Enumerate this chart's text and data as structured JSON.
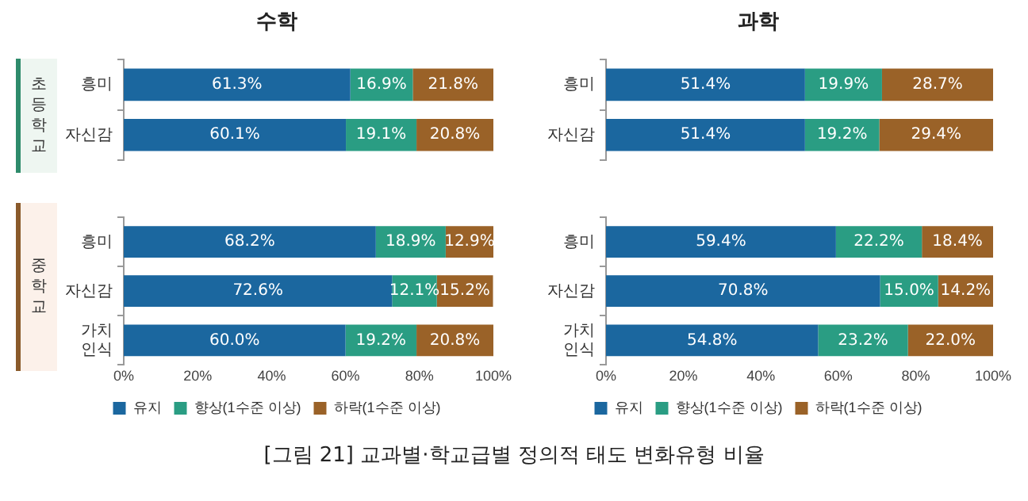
{
  "chart_data": [
    {
      "type": "bar",
      "orientation": "horizontal",
      "stacked": true,
      "title": "수학",
      "ylabel": "초등학교",
      "categories": [
        "흥미",
        "자신감"
      ],
      "xlim": [
        0,
        100
      ],
      "tick_labels": "y",
      "grid": false,
      "legend": false,
      "series": [
        {
          "color": "#1b679f",
          "values": [
            61.3,
            60.1
          ],
          "value_labels": [
            "61.3%",
            "60.1%"
          ]
        },
        {
          "color": "#2a9d83",
          "values": [
            16.9,
            19.1
          ],
          "value_labels": [
            "16.9%",
            "19.1%"
          ]
        },
        {
          "color": "#9a6228",
          "values": [
            21.8,
            20.8
          ],
          "value_labels": [
            "21.8%",
            "20.8%"
          ]
        }
      ]
    },
    {
      "type": "bar",
      "orientation": "horizontal",
      "stacked": true,
      "title": "과학",
      "categories": [
        "흥미",
        "자신감"
      ],
      "xlim": [
        0,
        100
      ],
      "tick_labels": "y",
      "grid": false,
      "legend": false,
      "series": [
        {
          "color": "#1b679f",
          "values": [
            51.4,
            51.4
          ],
          "value_labels": [
            "51.4%",
            "51.4%"
          ]
        },
        {
          "color": "#2a9d83",
          "values": [
            19.9,
            19.2
          ],
          "value_labels": [
            "19.9%",
            "19.2%"
          ]
        },
        {
          "color": "#9a6228",
          "values": [
            28.7,
            29.4
          ],
          "value_labels": [
            "28.7%",
            "29.4%"
          ]
        }
      ]
    },
    {
      "type": "bar",
      "orientation": "horizontal",
      "stacked": true,
      "ylabel": "중학교",
      "categories": [
        "흥미",
        "자신감",
        "가치 인식"
      ],
      "xlim": [
        0,
        100
      ],
      "xticks": [
        {
          "value": 0,
          "label": "0%"
        },
        {
          "value": 20,
          "label": "20%"
        },
        {
          "value": 40,
          "label": "40%"
        },
        {
          "value": 60,
          "label": "60%"
        },
        {
          "value": 80,
          "label": "80%"
        },
        {
          "value": 100,
          "label": "100%"
        }
      ],
      "grid": false,
      "legend": "bottom",
      "series": [
        {
          "name": "유지",
          "color": "#1b679f",
          "values": [
            68.2,
            72.6,
            60.0
          ],
          "value_labels": [
            "68.2%",
            "72.6%",
            "60.0%"
          ]
        },
        {
          "name": "향상(1수준 이상)",
          "color": "#2a9d83",
          "values": [
            18.9,
            12.1,
            19.2
          ],
          "value_labels": [
            "18.9%",
            "12.1%",
            "19.2%"
          ]
        },
        {
          "name": "하락(1수준 이상)",
          "color": "#9a6228",
          "values": [
            12.9,
            15.2,
            20.8
          ],
          "value_labels": [
            "12.9%",
            "15.2%",
            "20.8%"
          ]
        }
      ]
    },
    {
      "type": "bar",
      "orientation": "horizontal",
      "stacked": true,
      "categories": [
        "흥미",
        "자신감",
        "가치 인식"
      ],
      "xlim": [
        0,
        100
      ],
      "xticks": [
        {
          "value": 0,
          "label": "0%"
        },
        {
          "value": 20,
          "label": "20%"
        },
        {
          "value": 40,
          "label": "40%"
        },
        {
          "value": 60,
          "label": "60%"
        },
        {
          "value": 80,
          "label": "80%"
        },
        {
          "value": 100,
          "label": "100%"
        }
      ],
      "grid": false,
      "legend": "bottom",
      "annotations": [
        "[그림 21] 교과별·학교급별 정의적 태도 변화유형 비율"
      ],
      "series": [
        {
          "name": "유지",
          "color": "#1b679f",
          "values": [
            59.4,
            70.8,
            54.8
          ],
          "value_labels": [
            "59.4%",
            "70.8%",
            "54.8%"
          ]
        },
        {
          "name": "향상(1수준 이상)",
          "color": "#2a9d83",
          "values": [
            22.2,
            15.0,
            23.2
          ],
          "value_labels": [
            "22.2%",
            "15.0%",
            "23.2%"
          ]
        },
        {
          "name": "하락(1수준 이상)",
          "color": "#9a6228",
          "values": [
            18.4,
            14.2,
            22.0
          ],
          "value_labels": [
            "18.4%",
            "14.2%",
            "22.0%"
          ]
        }
      ]
    }
  ]
}
